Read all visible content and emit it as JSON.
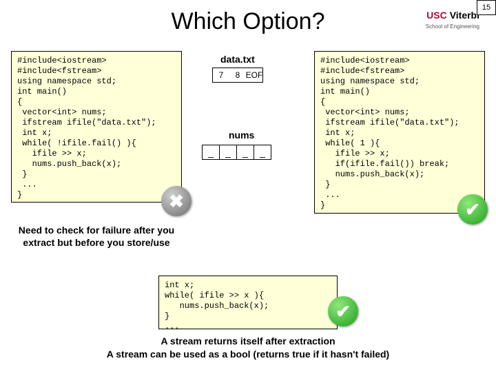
{
  "page_number": "15",
  "logo": {
    "usc": "USC",
    "viterbi": "Viterbi",
    "sub": "School of Engineering",
    "usc_color": "#b30838"
  },
  "title": "Which Option?",
  "code_left": "#include<iostream>\n#include<fstream>\nusing namespace std;\nint main()\n{\n vector<int> nums;\n ifstream ifile(\"data.txt\");\n int x;\n while( !ifile.fail() ){\n   ifile >> x;\n   nums.push_back(x);\n }\n ...\n}",
  "code_right": "#include<iostream>\n#include<fstream>\nusing namespace std;\nint main()\n{\n vector<int> nums;\n ifstream ifile(\"data.txt\");\n int x;\n while( 1 ){\n   ifile >> x;\n   if(ifile.fail()) break;\n   nums.push_back(x);\n }\n ...\n}",
  "code_bottom": "int x;\nwhile( ifile >> x ){\n   nums.push_back(x);\n}\n...",
  "data_file": {
    "label": "data.txt",
    "cells": [
      "7",
      "8",
      "EOF"
    ]
  },
  "nums": {
    "label": "nums",
    "cells": [
      "_",
      "_",
      "_",
      "_"
    ]
  },
  "need_check": "Need to check for failure after you extract but before you store/use",
  "bottom1": "A stream returns itself after extraction",
  "bottom2": "A stream can be used as a bool (returns true if it hasn't failed)",
  "badges": {
    "x": "✖",
    "check": "✔"
  },
  "colors": {
    "codebg": "#ffffd8",
    "border": "#000000"
  }
}
